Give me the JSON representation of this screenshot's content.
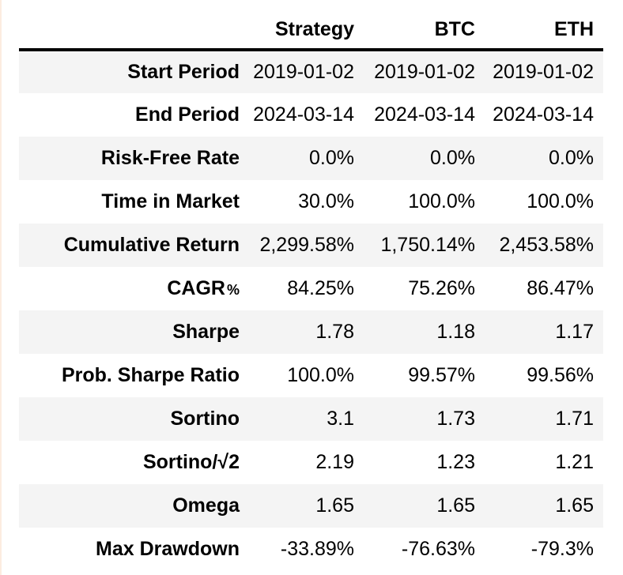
{
  "chart_data": {
    "type": "table",
    "corner_label": "",
    "columns": [
      "Strategy",
      "BTC",
      "ETH"
    ],
    "rows": [
      {
        "label": "Start Period",
        "values": [
          "2019-01-02",
          "2019-01-02",
          "2019-01-02"
        ]
      },
      {
        "label": "End Period",
        "values": [
          "2024-03-14",
          "2024-03-14",
          "2024-03-14"
        ]
      },
      {
        "label": "Risk-Free Rate",
        "values": [
          "0.0%",
          "0.0%",
          "0.0%"
        ]
      },
      {
        "label": "Time in Market",
        "values": [
          "30.0%",
          "100.0%",
          "100.0%"
        ]
      },
      {
        "label": "Cumulative Return",
        "values": [
          "2,299.58%",
          "1,750.14%",
          "2,453.58%"
        ]
      },
      {
        "label": "CAGR",
        "label_suffix": "%",
        "values": [
          "84.25%",
          "75.26%",
          "86.47%"
        ]
      },
      {
        "label": "Sharpe",
        "values": [
          "1.78",
          "1.18",
          "1.17"
        ]
      },
      {
        "label": "Prob. Sharpe Ratio",
        "values": [
          "100.0%",
          "99.57%",
          "99.56%"
        ]
      },
      {
        "label": "Sortino",
        "values": [
          "3.1",
          "1.73",
          "1.71"
        ]
      },
      {
        "label": "Sortino/√2",
        "values": [
          "2.19",
          "1.23",
          "1.21"
        ]
      },
      {
        "label": "Omega",
        "values": [
          "1.65",
          "1.65",
          "1.65"
        ]
      },
      {
        "label": "Max Drawdown",
        "values": [
          "-33.89%",
          "-76.63%",
          "-79.3%"
        ]
      }
    ],
    "layout": {
      "stripe_color": "#f4f4f4",
      "header_rule_color": "#000000",
      "text_color": "#000000",
      "left_edge_color": "#fcece0",
      "alignment": "right"
    }
  }
}
